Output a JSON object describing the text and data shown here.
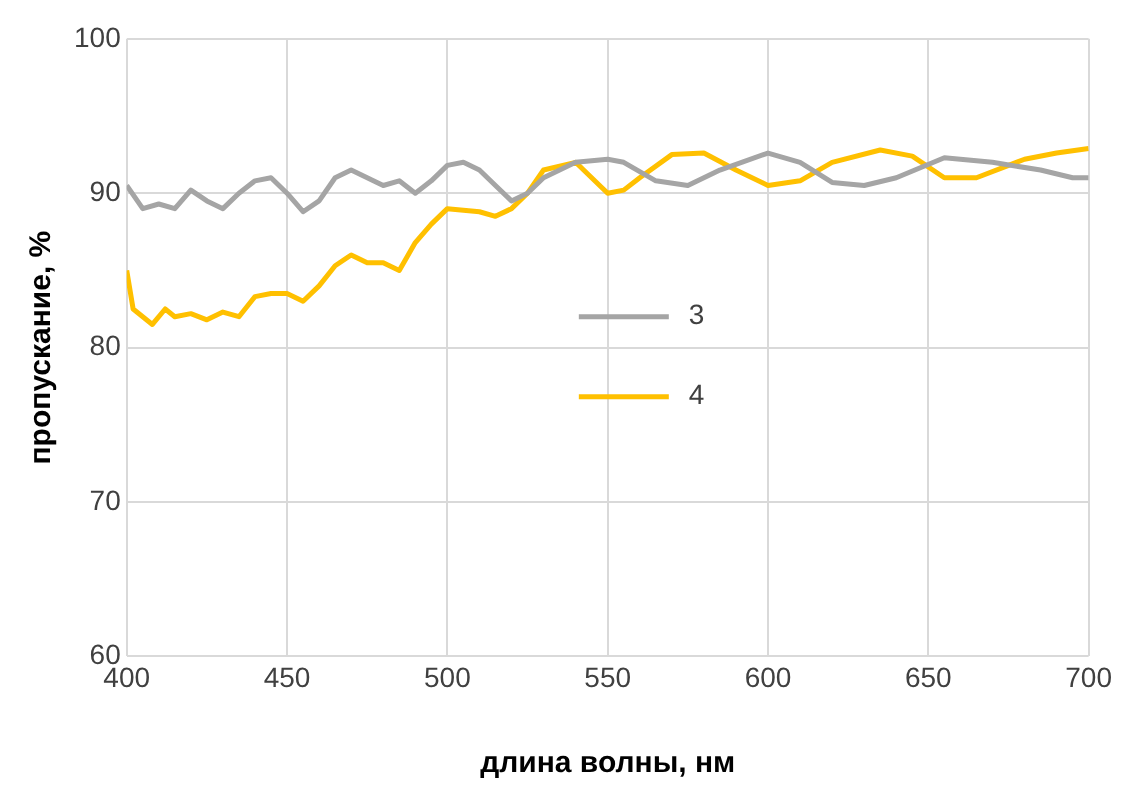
{
  "chart_data": {
    "type": "line",
    "xlabel": "длина волны, нм",
    "ylabel": "пропускание, %",
    "xlim": [
      400,
      700
    ],
    "xticks": [
      400,
      450,
      500,
      550,
      600,
      650,
      700
    ],
    "ylim": [
      60,
      100
    ],
    "yticks": [
      60,
      70,
      80,
      90,
      100
    ],
    "grid": true,
    "legend": "right",
    "marker": "none",
    "line_style": "solid",
    "series": [
      {
        "name": "3",
        "color": "#a5a5a5",
        "x": [
          400,
          405,
          410,
          415,
          420,
          425,
          430,
          435,
          440,
          445,
          450,
          455,
          460,
          465,
          470,
          480,
          485,
          490,
          495,
          500,
          505,
          510,
          515,
          520,
          525,
          530,
          540,
          550,
          555,
          565,
          575,
          585,
          600,
          610,
          620,
          630,
          640,
          655,
          670,
          685,
          695,
          700
        ],
        "values": [
          90.5,
          89,
          89.3,
          89,
          90.2,
          89.5,
          89,
          90,
          90.8,
          91,
          90,
          88.8,
          89.5,
          91,
          91.5,
          90.5,
          90.8,
          90,
          90.8,
          91.8,
          92,
          91.5,
          90.5,
          89.5,
          90,
          91,
          92,
          92.2,
          92,
          90.8,
          90.5,
          91.5,
          92.6,
          92,
          90.7,
          90.5,
          91,
          92.3,
          92,
          91.5,
          91,
          91
        ]
      },
      {
        "name": "4",
        "color": "#ffc000",
        "x": [
          400,
          402,
          405,
          408,
          412,
          415,
          420,
          425,
          430,
          435,
          440,
          445,
          450,
          455,
          460,
          465,
          470,
          475,
          480,
          485,
          490,
          495,
          500,
          510,
          515,
          520,
          525,
          530,
          540,
          545,
          550,
          555,
          560,
          570,
          580,
          590,
          600,
          610,
          620,
          635,
          645,
          655,
          665,
          680,
          690,
          700
        ],
        "values": [
          85,
          82.5,
          82,
          81.5,
          82.5,
          82,
          82.2,
          81.8,
          82.3,
          82,
          83.3,
          83.5,
          83.5,
          83,
          84,
          85.3,
          86,
          85.5,
          85.5,
          85,
          86.8,
          88,
          89,
          88.8,
          88.5,
          89,
          90,
          91.5,
          92,
          91,
          90,
          90.2,
          91,
          92.5,
          92.6,
          91.5,
          90.5,
          90.8,
          92,
          92.8,
          92.4,
          91,
          91,
          92.2,
          92.6,
          92.9
        ]
      }
    ]
  }
}
